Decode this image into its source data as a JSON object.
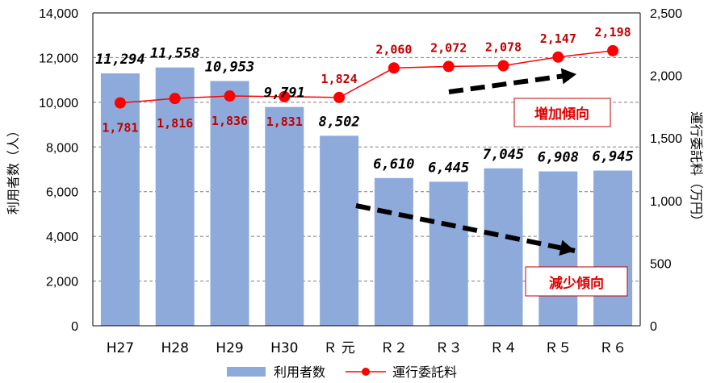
{
  "chart_data": {
    "type": "bar",
    "categories": [
      "H27",
      "H28",
      "H29",
      "H30",
      "Ｒ 元",
      "Ｒ２",
      "Ｒ３",
      "Ｒ４",
      "Ｒ５",
      "Ｒ６"
    ],
    "series": [
      {
        "name": "利用者数",
        "type": "bar",
        "axis": "left",
        "color": "#8eaadb",
        "values": [
          11294,
          11558,
          10953,
          9791,
          8502,
          6610,
          6445,
          7045,
          6908,
          6945
        ],
        "labels": [
          "11,294",
          "11,558",
          "10,953",
          "9,791",
          "8,502",
          "6,610",
          "6,445",
          "7,045",
          "6,908",
          "6,945"
        ]
      },
      {
        "name": "運行委託料",
        "type": "line",
        "axis": "right",
        "color": "#ff0000",
        "values": [
          1781,
          1816,
          1836,
          1831,
          1824,
          2060,
          2072,
          2078,
          2147,
          2198
        ],
        "labels": [
          "1,781",
          "1,816",
          "1,836",
          "1,831",
          "1,824",
          "2,060",
          "2,072",
          "2,078",
          "2,147",
          "2,198"
        ]
      }
    ],
    "y_left": {
      "label": "利用者数（人）",
      "ylim": [
        0,
        14000
      ],
      "ticks": [
        "0",
        "2,000",
        "4,000",
        "6,000",
        "8,000",
        "10,000",
        "12,000",
        "14,000"
      ],
      "tick_values": [
        0,
        2000,
        4000,
        6000,
        8000,
        10000,
        12000,
        14000
      ]
    },
    "y_right": {
      "label": "運行委託料（万円）",
      "ylim": [
        0,
        2500
      ],
      "ticks": [
        "0",
        "500",
        "1,000",
        "1,500",
        "2,000",
        "2,500"
      ],
      "tick_values": [
        0,
        500,
        1000,
        1500,
        2000,
        2500
      ]
    },
    "grid": true,
    "grid_style": "dashed",
    "legend_position": "bottom-center",
    "annotations": [
      {
        "text": "増加傾向",
        "trend": "up"
      },
      {
        "text": "減少傾向",
        "trend": "down"
      }
    ],
    "colors": {
      "bar": "#8eaadb",
      "line": "#ff0000",
      "label_red": "#c00000",
      "annotation": "#e00000"
    }
  }
}
